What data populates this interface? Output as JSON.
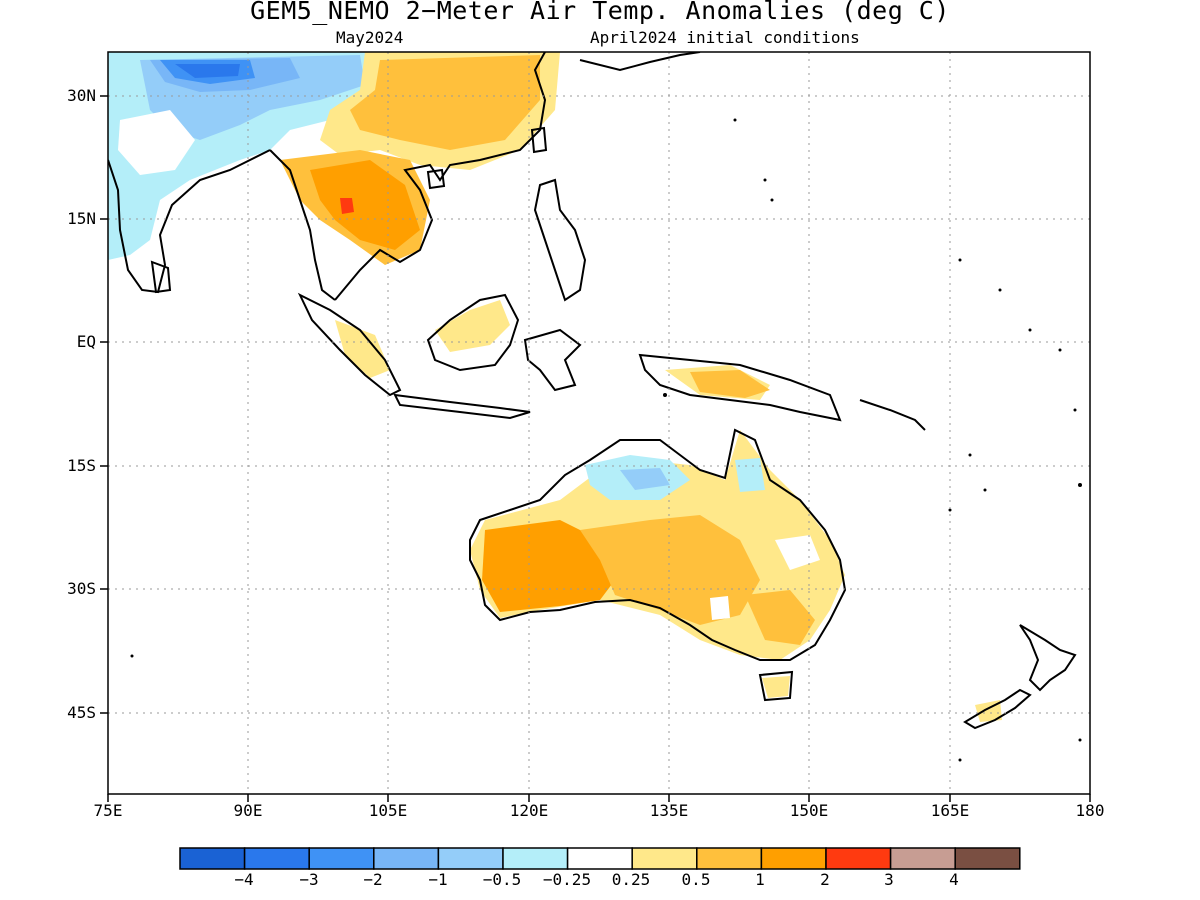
{
  "title": "GEM5_NEMO 2-Meter Air Temp. Anomalies (deg C)",
  "subtitle_left": "May2024",
  "subtitle_right": "April2024 initial conditions",
  "lat_labels": [
    "30N",
    "15N",
    "EQ",
    "15S",
    "30S",
    "45S"
  ],
  "lon_labels": [
    "75E",
    "90E",
    "105E",
    "120E",
    "135E",
    "150E",
    "165E",
    "180"
  ],
  "colorbar": {
    "colors": [
      "#1a62d4",
      "#2a78ec",
      "#3f92f5",
      "#78b6f7",
      "#94cdf9",
      "#b4eef9",
      "#ffffff",
      "#ffe88a",
      "#ffc03c",
      "#ff9f00",
      "#ff3a10",
      "#c79d93",
      "#7a4f42"
    ],
    "labels": [
      "-4",
      "-3",
      "-2",
      "-1",
      "-0.5",
      "-0.25",
      "0.25",
      "0.5",
      "1",
      "2",
      "3",
      "4"
    ]
  }
}
